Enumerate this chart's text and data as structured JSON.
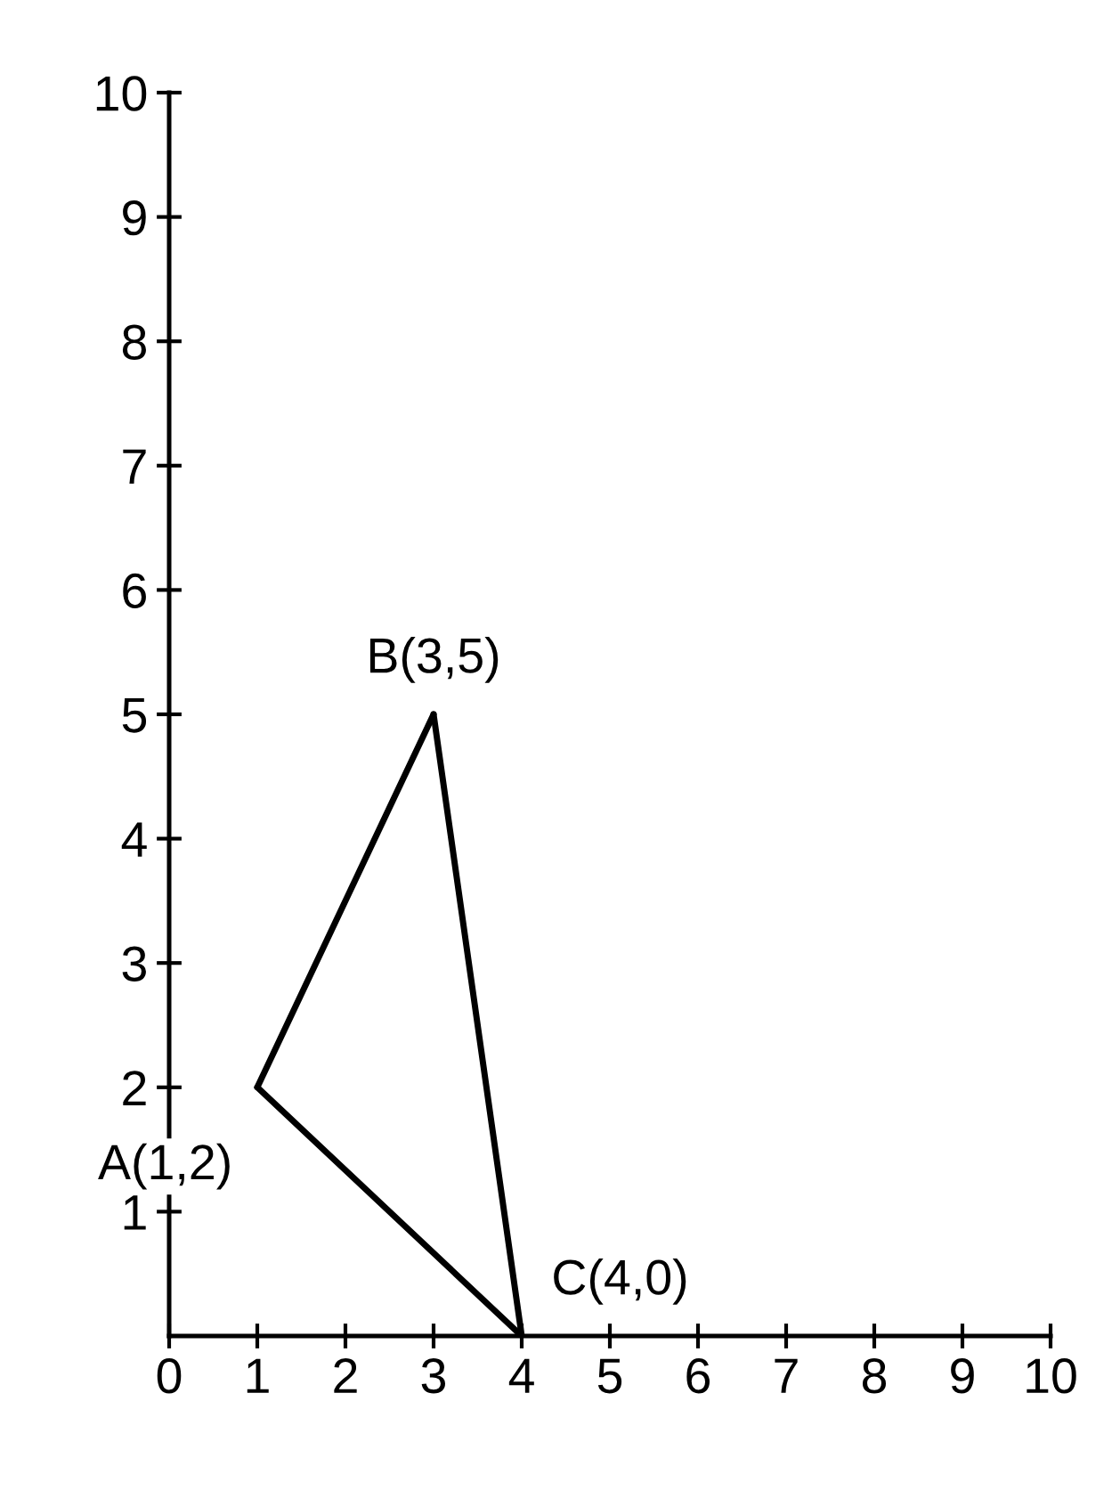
{
  "chart_data": {
    "type": "line",
    "series": [
      {
        "color": "#000000",
        "x": [
          1,
          3
        ],
        "values": [
          2,
          5
        ]
      },
      {
        "color": "#000000",
        "x": [
          3,
          4
        ],
        "values": [
          5,
          0
        ]
      },
      {
        "color": "#000000",
        "x": [
          1,
          4
        ],
        "values": [
          2,
          0
        ]
      }
    ],
    "annotations": [
      {
        "text": "A(1,2)",
        "x": 1,
        "y": 2
      },
      {
        "text": "B(3,5)",
        "x": 3,
        "y": 5
      },
      {
        "text": "C(4,0)",
        "x": 4,
        "y": 0
      }
    ],
    "xlim": [
      0,
      10
    ],
    "ylim": [
      0,
      10
    ],
    "xticks": [
      0,
      1,
      2,
      3,
      4,
      5,
      6,
      7,
      8,
      9,
      10
    ],
    "yticks": [
      1,
      2,
      3,
      4,
      5,
      6,
      7,
      8,
      9,
      10
    ],
    "grid": false,
    "marker": "none",
    "line_style": "solid"
  }
}
